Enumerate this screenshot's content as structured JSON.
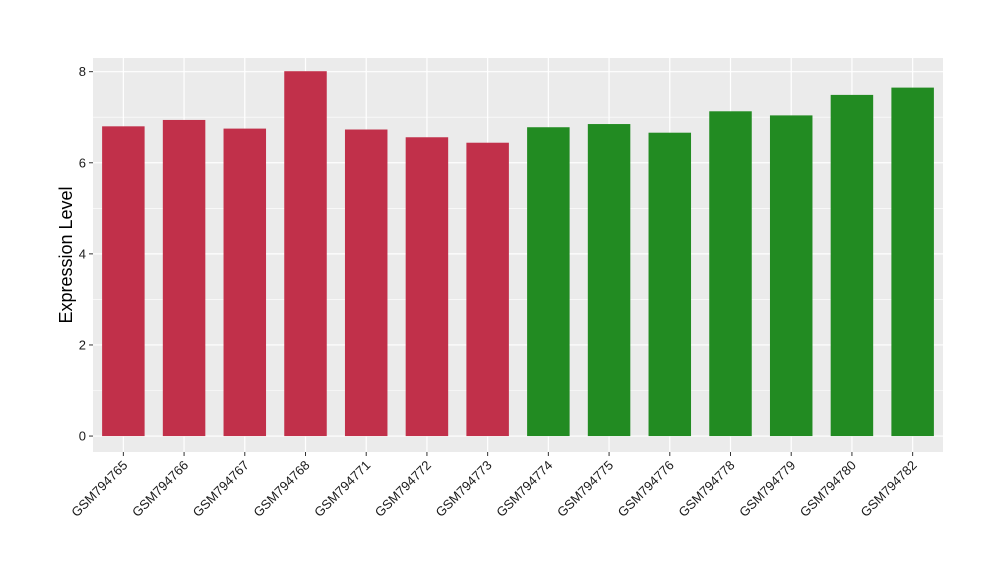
{
  "chart_data": {
    "type": "bar",
    "title": "",
    "xlabel": "",
    "ylabel": "Expression Level",
    "ylim": [
      -0.35,
      8.3
    ],
    "yticks": [
      0,
      2,
      4,
      6,
      8
    ],
    "categories": [
      "GSM794765",
      "GSM794766",
      "GSM794767",
      "GSM794768",
      "GSM794771",
      "GSM794772",
      "GSM794773",
      "GSM794774",
      "GSM794775",
      "GSM794776",
      "GSM794778",
      "GSM794779",
      "GSM794780",
      "GSM794782"
    ],
    "values": [
      6.8,
      6.94,
      6.75,
      8.01,
      6.73,
      6.56,
      6.44,
      6.78,
      6.85,
      6.66,
      7.13,
      7.04,
      7.49,
      7.65
    ],
    "bar_colors": [
      "#c1304a",
      "#c1304a",
      "#c1304a",
      "#c1304a",
      "#c1304a",
      "#c1304a",
      "#c1304a",
      "#228b22",
      "#228b22",
      "#228b22",
      "#228b22",
      "#228b22",
      "#228b22",
      "#228b22"
    ],
    "panel_background": "#ebebeb",
    "grid": true,
    "grid_color": "#ffffff",
    "legend": "none"
  }
}
